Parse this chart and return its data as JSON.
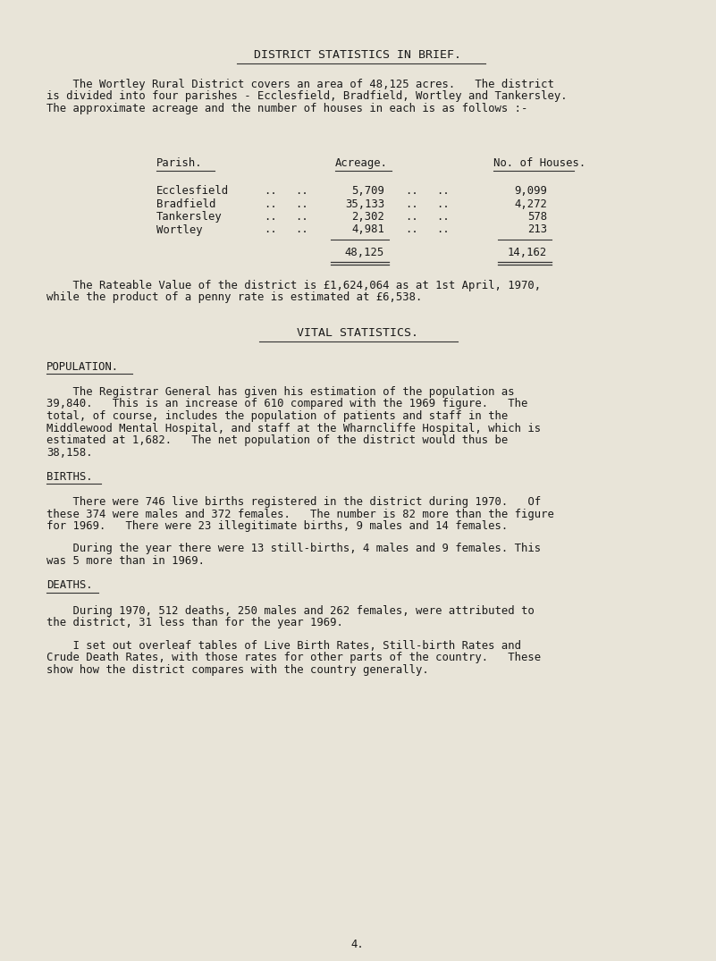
{
  "bg_color": "#e8e4d8",
  "text_color": "#1a1a1a",
  "title": "DISTRICT STATISTICS IN BRIEF.",
  "intro_line1": "    The Wortley Rural District covers an area of 48,125 acres.   The district",
  "intro_line2": "is divided into four parishes - Ecclesfield, Bradfield, Wortley and Tankersley.",
  "intro_line3": "The approximate acreage and the number of houses in each is as follows :-",
  "table_col_parish": "Parish.",
  "table_col_acreage": "Acreage.",
  "table_col_houses": "No. of Houses.",
  "table_rows": [
    [
      "Ecclesfield",
      "5,709",
      "9,099"
    ],
    [
      "Bradfield",
      "35,133",
      "4,272"
    ],
    [
      "Tankersley",
      "2,302",
      "578"
    ],
    [
      "Wortley",
      "4,981",
      "213"
    ]
  ],
  "table_total_acreage": "48,125",
  "table_total_houses": "14,162",
  "rateable_line1": "    The Rateable Value of the district is £1,624,064 as at 1st April, 1970,",
  "rateable_line2": "while the product of a penny rate is estimated at £6,538.",
  "vital_title": "VITAL STATISTICS.",
  "section_population": "POPULATION.",
  "population_lines": [
    "    The Registrar General has given his estimation of the population as",
    "39,840.   This is an increase of 610 compared with the 1969 figure.   The",
    "total, of course, includes the population of patients and staff in the",
    "Middlewood Mental Hospital, and staff at the Wharncliffe Hospital, which is",
    "estimated at 1,682.   The net population of the district would thus be",
    "38,158."
  ],
  "section_births": "BIRTHS.",
  "births_lines1": [
    "    There were 746 live births registered in the district during 1970.   Of",
    "these 374 were males and 372 females.   The number is 82 more than the figure",
    "for 1969.   There were 23 illegitimate births, 9 males and 14 females."
  ],
  "births_lines2": [
    "    During the year there were 13 still-births, 4 males and 9 females. This",
    "was 5 more than in 1969."
  ],
  "section_deaths": "DEATHS.",
  "deaths_lines1": [
    "    During 1970, 512 deaths, 250 males and 262 females, were attributed to",
    "the district, 31 less than for the year 1969."
  ],
  "deaths_lines2": [
    "    I set out overleaf tables of Live Birth Rates, Still-birth Rates and",
    "Crude Death Rates, with those rates for other parts of the country.   These",
    "show how the district compares with the country generally."
  ],
  "page_number": "4.",
  "fs_title": 9.5,
  "fs_body": 8.8,
  "fs_section": 8.8
}
